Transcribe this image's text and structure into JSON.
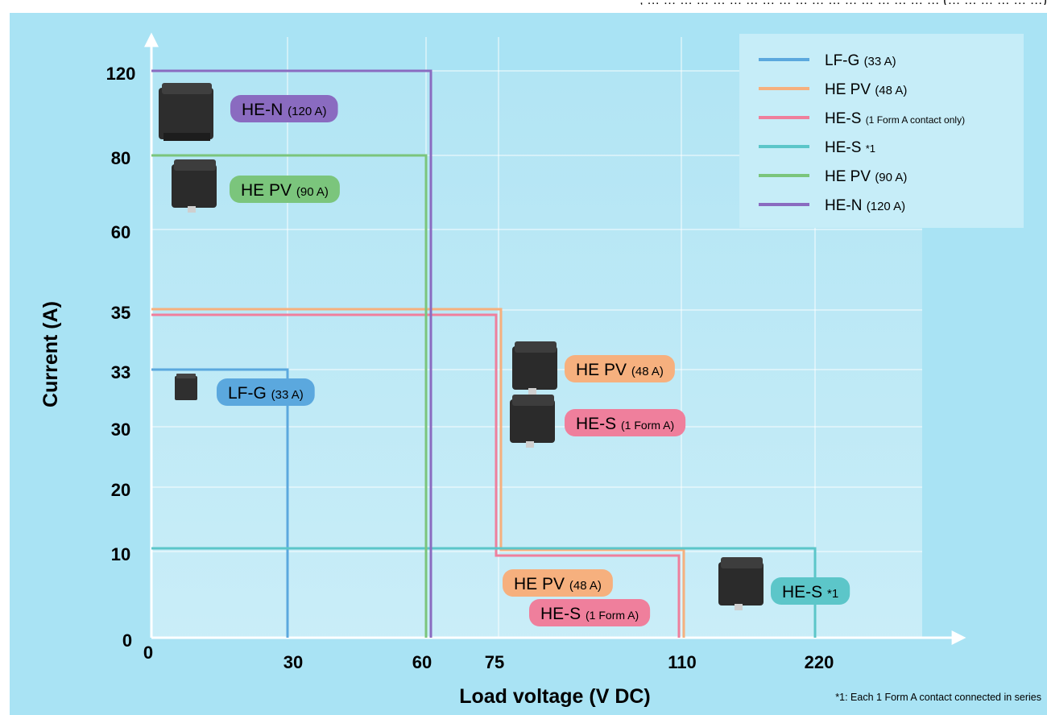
{
  "header_fragment": ", … … … … … … … … … … … … … … … … … … (… … … … … …)",
  "chart_data": {
    "type": "step-area",
    "ylabel": "Current (A)",
    "xlabel": "Load voltage (V DC)",
    "x_ticks": [
      "0",
      "30",
      "60",
      "75",
      "110",
      "220"
    ],
    "y_ticks": [
      "0",
      "10",
      "20",
      "30",
      "33",
      "35",
      "60",
      "80",
      "120"
    ],
    "footnote": "*1: Each 1 Form A contact connected in series",
    "colors": {
      "background": "#a9e3f4",
      "axis": "#ffffff",
      "grid": "#ffffff"
    },
    "legend": [
      {
        "name": "LF-G",
        "detail": "(33 A)",
        "color": "#5ba8de"
      },
      {
        "name": "HE PV",
        "detail": "(48 A)",
        "color": "#f6b07e"
      },
      {
        "name": "HE-S",
        "detail": "(1 Form A contact only)",
        "color": "#ef7f9c"
      },
      {
        "name": "HE-S",
        "detail": "*1",
        "color": "#5cc6c9"
      },
      {
        "name": "HE PV",
        "detail": "(90 A)",
        "color": "#7bc57c"
      },
      {
        "name": "HE-N",
        "detail": "(120 A)",
        "color": "#8a6bc0"
      }
    ],
    "series": [
      {
        "id": "lfg",
        "color": "#5ba8de",
        "points": [
          [
            "0",
            "33"
          ],
          [
            "30",
            "33"
          ],
          [
            "30",
            "0"
          ]
        ]
      },
      {
        "id": "hepv48",
        "color": "#f6b07e",
        "points": [
          [
            "0",
            "35"
          ],
          [
            "75",
            "35"
          ],
          [
            "75",
            "10"
          ],
          [
            "110",
            "10"
          ],
          [
            "110",
            "0"
          ]
        ]
      },
      {
        "id": "hes1a",
        "color": "#ef7f9c",
        "points": [
          [
            "0",
            "35"
          ],
          [
            "75",
            "35"
          ],
          [
            "75",
            "10"
          ],
          [
            "110",
            "10"
          ],
          [
            "110",
            "0"
          ]
        ]
      },
      {
        "id": "hes1",
        "color": "#5cc6c9",
        "points": [
          [
            "0",
            "10"
          ],
          [
            "220",
            "10"
          ],
          [
            "220",
            "0"
          ]
        ]
      },
      {
        "id": "hepv90",
        "color": "#7bc57c",
        "points": [
          [
            "0",
            "80"
          ],
          [
            "60",
            "80"
          ],
          [
            "60",
            "0"
          ]
        ]
      },
      {
        "id": "hen",
        "color": "#8a6bc0",
        "points": [
          [
            "0",
            "120"
          ],
          [
            "60",
            "120"
          ],
          [
            "60",
            "0"
          ]
        ]
      }
    ],
    "annotations": [
      {
        "id": "ann-hen",
        "name": "HE-N",
        "detail": "(120 A)",
        "color": "#8a6bc0",
        "device": "tall"
      },
      {
        "id": "ann-hepv90",
        "name": "HE PV",
        "detail": "(90 A)",
        "color": "#7bc57c",
        "device": "cube"
      },
      {
        "id": "ann-lfg",
        "name": "LF-G",
        "detail": "(33 A)",
        "color": "#5ba8de",
        "device": "small"
      },
      {
        "id": "ann-hepv48",
        "name": "HE PV",
        "detail": "(48 A)",
        "color": "#f6b07e",
        "device": "cube"
      },
      {
        "id": "ann-hes-1forma",
        "name": "HE-S",
        "detail": "(1 Form A)",
        "color": "#ef7f9c",
        "device": "cube"
      },
      {
        "id": "ann-hepv48-low",
        "name": "HE PV",
        "detail": "(48 A)",
        "color": "#f6b07e",
        "device": "none"
      },
      {
        "id": "ann-hes-low",
        "name": "HE-S",
        "detail": "(1 Form A)",
        "color": "#ef7f9c",
        "device": "none"
      },
      {
        "id": "ann-hes1",
        "name": "HE-S",
        "detail": "*1",
        "color": "#5cc6c9",
        "device": "cube"
      }
    ]
  }
}
